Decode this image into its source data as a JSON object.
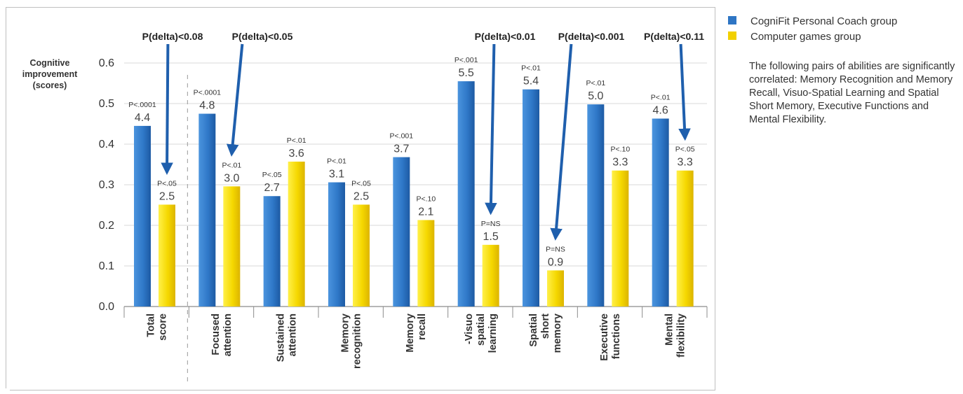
{
  "chart_data": {
    "type": "bar",
    "ylabel": "Cognitive improvement (scores)",
    "ylabel_lines": [
      "Cognitive",
      "improvement",
      "(scores)"
    ],
    "ylim": [
      0,
      0.6
    ],
    "yticks": [
      "0.0",
      "0.1",
      "0.2",
      "0.3",
      "0.4",
      "0.5",
      "0.6"
    ],
    "categories": [
      [
        "Total",
        "score"
      ],
      [
        "Focused",
        "attention"
      ],
      [
        "Sustained",
        "attention"
      ],
      [
        "Memory",
        "recognition"
      ],
      [
        "Memory",
        "recall"
      ],
      [
        "-Visuo",
        "spatial",
        "learning"
      ],
      [
        "Spatial",
        "short",
        "memory"
      ],
      [
        "Executive",
        "functions"
      ],
      [
        "Mental",
        "flexibility"
      ]
    ],
    "series": [
      {
        "name": "CogniFit Personal Coach group",
        "color": "#2e75c4",
        "values": [
          0.445,
          0.475,
          0.272,
          0.306,
          0.368,
          0.555,
          0.535,
          0.498,
          0.463
        ],
        "labels": [
          "4.4",
          "4.8",
          "2.7",
          "3.1",
          "3.7",
          "5.5",
          "5.4",
          "5.0",
          "4.6"
        ],
        "p_labels": [
          "P<.0001",
          "P<.0001",
          "P<.05",
          "P<.01",
          "P<.001",
          "P<.001",
          "P<.01",
          "P<.01",
          "P<.01"
        ]
      },
      {
        "name": "Computer games group",
        "color": "#f2d000",
        "values": [
          0.251,
          0.296,
          0.357,
          0.251,
          0.213,
          0.152,
          0.089,
          0.335,
          0.335
        ],
        "labels": [
          "2.5",
          "3.0",
          "3.6",
          "2.5",
          "2.1",
          "1.5",
          "0.9",
          "3.3",
          "3.3"
        ],
        "p_labels": [
          "P<.05",
          "P<.01",
          "P<.01",
          "P<.05",
          "P<.10",
          "P=NS",
          "P=NS",
          "P<.10",
          "P<.05"
        ]
      }
    ],
    "annotations": [
      {
        "text": "P(delta)<0.08",
        "category": 0
      },
      {
        "text": "P(delta)<0.05",
        "category": 1
      },
      {
        "text": "P(delta)<0.01",
        "category": 5
      },
      {
        "text": "P(delta)<0.001",
        "category": 6
      },
      {
        "text": "P(delta)<0.11",
        "category": 8
      }
    ],
    "grid": true,
    "legend_position": "right"
  },
  "legend": {
    "items": [
      {
        "label": "CogniFit Personal Coach group",
        "color": "#2e75c4"
      },
      {
        "label": "Computer games group",
        "color": "#f2d000"
      }
    ]
  },
  "note": "The following pairs of abilities are significantly correlated: Memory Recognition and Memory Recall, Visuo-Spatial Learning and Spatial Short Memory, Executive Functions and Mental Flexibility.",
  "colors": {
    "arrow": "#1f5fad",
    "grid": "#d9d9d9",
    "axis": "#8c8c8c"
  }
}
